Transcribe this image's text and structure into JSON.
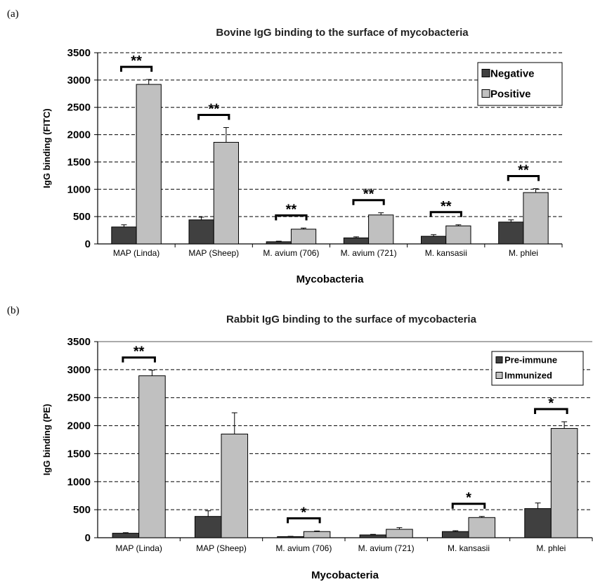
{
  "chart_data": [
    {
      "type": "bar",
      "panel_label": "(a)",
      "title": "Bovine IgG binding to the surface of mycobacteria",
      "xlabel": "Mycobacteria",
      "ylabel": "IgG binding (FITC)",
      "ylim": [
        0,
        3500
      ],
      "yticks": [
        "0",
        "500",
        "1000",
        "1500",
        "2000",
        "2500",
        "3000",
        "3500"
      ],
      "grid": "horizontal dashed",
      "legend_position": "top-right",
      "categories": [
        "MAP (Linda)",
        "MAP (Sheep)",
        "M. avium (706)",
        "M. avium (721)",
        "M. kansasii",
        "M. phlei"
      ],
      "series": [
        {
          "name": "Negative",
          "color": "#404040",
          "values": [
            310,
            440,
            40,
            110,
            140,
            400
          ],
          "errors": [
            40,
            50,
            10,
            20,
            30,
            40
          ]
        },
        {
          "name": "Positive",
          "color": "#c0c0c0",
          "values": [
            2920,
            1860,
            270,
            530,
            330,
            940
          ],
          "errors": [
            90,
            270,
            20,
            40,
            20,
            70
          ]
        }
      ],
      "significance": [
        "**",
        "**",
        "**",
        "**",
        "**",
        "**"
      ]
    },
    {
      "type": "bar",
      "panel_label": "(b)",
      "title": "Rabbit  IgG binding to the surface of mycobacteria",
      "xlabel": "Mycobacteria",
      "ylabel": "IgG binding (PE)",
      "ylim": [
        0,
        3500
      ],
      "yticks": [
        "0",
        "500",
        "1000",
        "1500",
        "2000",
        "2500",
        "3000",
        "3500"
      ],
      "grid": "horizontal dashed",
      "legend_position": "top-right",
      "categories": [
        "MAP (Linda)",
        "MAP (Sheep)",
        "M. avium (706)",
        "M. avium (721)",
        "M. kansasii",
        "M. phlei"
      ],
      "series": [
        {
          "name": "Pre-immune",
          "color": "#404040",
          "values": [
            80,
            380,
            20,
            50,
            110,
            520
          ],
          "errors": [
            10,
            100,
            5,
            10,
            15,
            100
          ]
        },
        {
          "name": "Immunized",
          "color": "#c0c0c0",
          "values": [
            2890,
            1850,
            110,
            150,
            360,
            1950
          ],
          "errors": [
            100,
            380,
            10,
            30,
            20,
            120
          ]
        }
      ],
      "significance": [
        "**",
        "",
        "*",
        "",
        "*",
        "*"
      ]
    }
  ]
}
